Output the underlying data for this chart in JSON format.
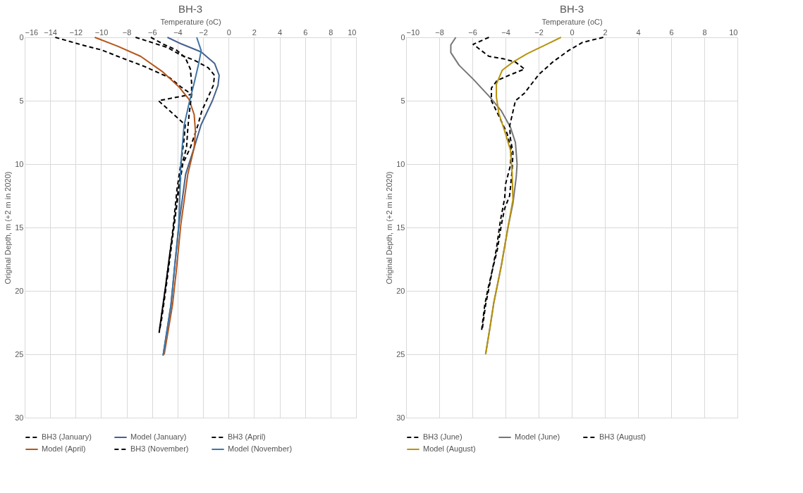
{
  "chart_data": [
    {
      "type": "line",
      "title": "BH-3",
      "xlabel": "Temperature (oC)",
      "ylabel": "Original Depth, m (+2 m in 2020)",
      "xlim": [
        -16,
        10
      ],
      "xticks": [
        -16,
        -14,
        -12,
        -10,
        -8,
        -6,
        -4,
        -2,
        0,
        2,
        4,
        6,
        8,
        10
      ],
      "ylim": [
        30,
        0
      ],
      "yticks": [
        0,
        5,
        10,
        15,
        20,
        25,
        30
      ],
      "grid": true,
      "legend": "bottom",
      "marker": "none",
      "series": [
        {
          "name": "BH3 (January)",
          "color": "#000000",
          "line_style": "dashed",
          "x": [
            -7.3,
            -4.8,
            -3.75,
            -2.7,
            -1.6,
            -1.1,
            -1.2,
            -1.6,
            -2.1,
            -2.4,
            -3.0,
            -3.6,
            -3.9,
            -4.3,
            -4.6,
            -4.95,
            -5.3,
            -5.45
          ],
          "values": [
            0,
            0.8,
            1.4,
            1.8,
            2.4,
            3.0,
            3.8,
            4.7,
            5.8,
            6.9,
            8.7,
            10,
            12,
            15,
            17,
            19.7,
            22.2,
            23.3
          ]
        },
        {
          "name": "Model (January)",
          "color": "#44618f",
          "line_style": "solid",
          "x": [
            -4.8,
            -3.75,
            -2.15,
            -1.1,
            -0.74,
            -0.83,
            -1.27,
            -2.16,
            -2.7,
            -3.37,
            -3.9,
            -4.26,
            -4.52,
            -5.14
          ],
          "values": [
            0,
            0.5,
            1.15,
            2.05,
            3.0,
            3.8,
            5.0,
            6.9,
            8.7,
            10.8,
            14.8,
            18.4,
            21.1,
            25.1
          ]
        },
        {
          "name": "BH3 (April)",
          "color": "#000000",
          "line_style": "dashed",
          "x": [
            -13.6,
            -11.5,
            -9.95,
            -8.7,
            -6.6,
            -4.6,
            -3.75,
            -2.9,
            -5.5,
            -3.4,
            -3.5,
            -3.75,
            -4.05,
            -4.35,
            -4.6,
            -4.95,
            -5.3,
            -5.45
          ],
          "values": [
            0,
            0.6,
            1.0,
            1.5,
            2.3,
            3.2,
            3.9,
            4.5,
            5.0,
            6.9,
            8.1,
            10,
            12,
            15,
            17,
            19.7,
            22.2,
            23.3
          ]
        },
        {
          "name": "Model (April)",
          "color": "#b5561c",
          "line_style": "solid",
          "x": [
            -10.5,
            -8.7,
            -6.9,
            -5.2,
            -3.9,
            -3.1,
            -2.7,
            -2.6,
            -2.7,
            -3.2,
            -3.75,
            -4.1,
            -4.4,
            -5.05
          ],
          "values": [
            0,
            0.7,
            1.5,
            2.7,
            3.9,
            4.9,
            6.1,
            7.4,
            8.7,
            10.8,
            14.8,
            18.4,
            21.1,
            25.0
          ]
        },
        {
          "name": "BH3 (November)",
          "color": "#000000",
          "line_style": "dashed",
          "x": [
            -6.1,
            -5.2,
            -4.1,
            -3.4,
            -3.0,
            -2.9,
            -2.9,
            -3.1,
            -3.2,
            -3.3,
            -3.65,
            -3.95,
            -4.3,
            -4.55,
            -4.9,
            -5.25,
            -5.45
          ],
          "values": [
            0,
            0.5,
            1.0,
            1.6,
            2.5,
            3.6,
            4.5,
            6.1,
            7.2,
            8.7,
            10,
            12,
            15,
            17,
            19.7,
            22.2,
            23.3
          ]
        },
        {
          "name": "Model (November)",
          "color": "#3e77a8",
          "line_style": "solid",
          "x": [
            -2.5,
            -2.15,
            -2.35,
            -2.7,
            -3.1,
            -3.5,
            -3.65,
            -3.75,
            -3.9,
            -4.26,
            -4.52,
            -5.14
          ],
          "values": [
            0,
            1.05,
            2.1,
            3.6,
            5.2,
            7.0,
            8.8,
            10.1,
            14.8,
            18.4,
            21.1,
            25.1
          ]
        }
      ]
    },
    {
      "type": "line",
      "title": "BH-3",
      "xlabel": "Temperature (oC)",
      "ylabel": "Original Depth, m (+2 m in 2020)",
      "xlim": [
        -10,
        10
      ],
      "xticks": [
        -10,
        -8,
        -6,
        -4,
        -2,
        0,
        2,
        4,
        6,
        8,
        10
      ],
      "ylim": [
        30,
        0
      ],
      "yticks": [
        0,
        5,
        10,
        15,
        20,
        25,
        30
      ],
      "grid": true,
      "legend": "bottom",
      "marker": "none",
      "series": [
        {
          "name": "BH3 (June)",
          "color": "#000000",
          "line_style": "dashed",
          "x": [
            -5.0,
            -5.95,
            -5.0,
            -4.1,
            -3.4,
            -2.85,
            -3.7,
            -4.5,
            -4.85,
            -4.85,
            -4.4,
            -3.9,
            -3.65,
            -3.7,
            -4.0,
            -4.05,
            -4.3,
            -4.55,
            -4.8,
            -5.05,
            -5.25,
            -5.45
          ],
          "values": [
            0,
            0.55,
            1.5,
            1.7,
            1.95,
            2.5,
            2.95,
            3.4,
            4.0,
            5.0,
            6.2,
            7.6,
            8.9,
            10.1,
            11.6,
            12.7,
            14.4,
            16.7,
            18.4,
            19.8,
            21.1,
            23.2
          ]
        },
        {
          "name": "Model (June)",
          "color": "#767676",
          "line_style": "solid",
          "x": [
            -7.0,
            -7.3,
            -7.3,
            -6.8,
            -5.95,
            -4.95,
            -4.25,
            -3.7,
            -3.4,
            -3.3,
            -3.35,
            -3.55,
            -3.85,
            -4.25,
            -4.7,
            -4.95,
            -5.2
          ],
          "values": [
            0,
            0.6,
            1.2,
            2.2,
            3.3,
            4.7,
            5.8,
            7.1,
            8.3,
            10,
            11,
            13.1,
            15,
            18,
            20.9,
            23.0,
            25
          ]
        },
        {
          "name": "BH3 (August)",
          "color": "#000000",
          "line_style": "dashed",
          "x": [
            1.9,
            0.65,
            -0.2,
            -1.15,
            -2.0,
            -2.85,
            -3.4,
            -3.75,
            -3.7,
            -3.55,
            -3.6,
            -3.75,
            -4.05,
            -4.25,
            -4.5,
            -4.8,
            -5.0,
            -5.2,
            -5.4
          ],
          "values": [
            0,
            0.4,
            1.05,
            1.95,
            2.95,
            4.4,
            5.0,
            7.0,
            8.0,
            9.1,
            10.5,
            12.5,
            13.5,
            14.8,
            16.8,
            18.4,
            19.8,
            21.1,
            23.0
          ]
        },
        {
          "name": "Model (August)",
          "color": "#b8930f",
          "line_style": "solid",
          "x": [
            -0.65,
            -1.75,
            -2.7,
            -3.55,
            -4.2,
            -4.55,
            -4.55,
            -4.4,
            -4.0,
            -3.7,
            -3.6,
            -3.55,
            -3.85,
            -4.25,
            -4.7,
            -4.95,
            -5.2
          ],
          "values": [
            0,
            0.7,
            1.3,
            1.95,
            2.6,
            3.7,
            4.7,
            6.0,
            7.6,
            8.9,
            10.7,
            12.8,
            15,
            18,
            20.9,
            23.0,
            25
          ]
        }
      ]
    }
  ]
}
